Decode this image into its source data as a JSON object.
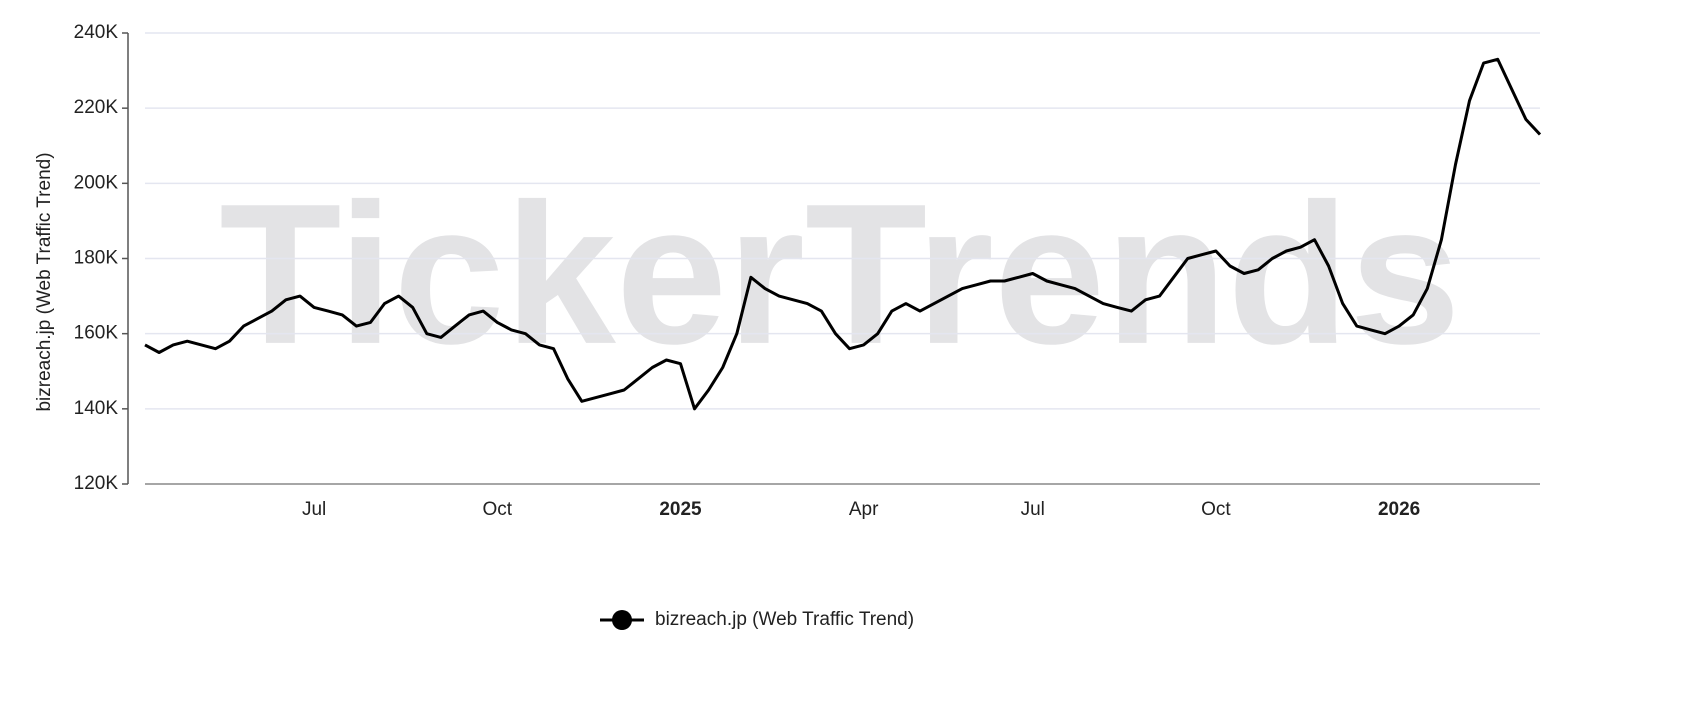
{
  "chart_data": {
    "type": "line",
    "watermark": "TickerTrends",
    "y_label": "bizreach.jp  (Web Traffic Trend)",
    "categories": [
      null,
      null,
      null,
      null,
      null,
      null,
      null,
      null,
      null,
      null,
      null,
      null,
      "Jul",
      null,
      null,
      null,
      null,
      null,
      null,
      null,
      null,
      null,
      null,
      null,
      null,
      "Oct",
      null,
      null,
      null,
      null,
      null,
      null,
      null,
      null,
      null,
      null,
      null,
      null,
      "2025",
      null,
      null,
      null,
      null,
      null,
      null,
      null,
      null,
      null,
      null,
      null,
      null,
      "Apr",
      null,
      null,
      null,
      null,
      null,
      null,
      null,
      null,
      null,
      null,
      null,
      "Jul",
      null,
      null,
      null,
      null,
      null,
      null,
      null,
      null,
      null,
      null,
      null,
      null,
      "Oct",
      null,
      null,
      null,
      null,
      null,
      null,
      null,
      null,
      null,
      null,
      null,
      null,
      "2026",
      null,
      null,
      null,
      null,
      null,
      null,
      null,
      null,
      null,
      null
    ],
    "series": [
      {
        "name": "bizreach.jp  (Web Traffic Trend)",
        "color": "#000000",
        "values": [
          157000,
          155000,
          157000,
          158000,
          157000,
          156000,
          158000,
          162000,
          164000,
          166000,
          169000,
          170000,
          167000,
          166000,
          165000,
          162000,
          163000,
          168000,
          170000,
          167000,
          160000,
          159000,
          162000,
          165000,
          166000,
          163000,
          161000,
          160000,
          157000,
          156000,
          148000,
          142000,
          143000,
          144000,
          145000,
          148000,
          151000,
          153000,
          152000,
          140000,
          145000,
          151000,
          160000,
          175000,
          172000,
          170000,
          169000,
          168000,
          166000,
          160000,
          156000,
          157000,
          160000,
          166000,
          168000,
          166000,
          168000,
          170000,
          172000,
          173000,
          174000,
          174000,
          175000,
          176000,
          174000,
          173000,
          172000,
          170000,
          168000,
          167000,
          166000,
          169000,
          170000,
          175000,
          180000,
          181000,
          182000,
          178000,
          176000,
          177000,
          180000,
          182000,
          183000,
          185000,
          178000,
          168000,
          162000,
          161000,
          160000,
          162000,
          165000,
          172000,
          185000,
          205000,
          222000,
          232000,
          233000,
          225000,
          217000,
          213000
        ]
      }
    ],
    "ylim": [
      120000,
      240000
    ],
    "yticks": [
      {
        "value": 120000,
        "label": "120K"
      },
      {
        "value": 140000,
        "label": "140K"
      },
      {
        "value": 160000,
        "label": "160K"
      },
      {
        "value": 180000,
        "label": "180K"
      },
      {
        "value": 200000,
        "label": "200K"
      },
      {
        "value": 220000,
        "label": "220K"
      },
      {
        "value": 240000,
        "label": "240K"
      }
    ],
    "grid": true,
    "legend": "bottom"
  }
}
